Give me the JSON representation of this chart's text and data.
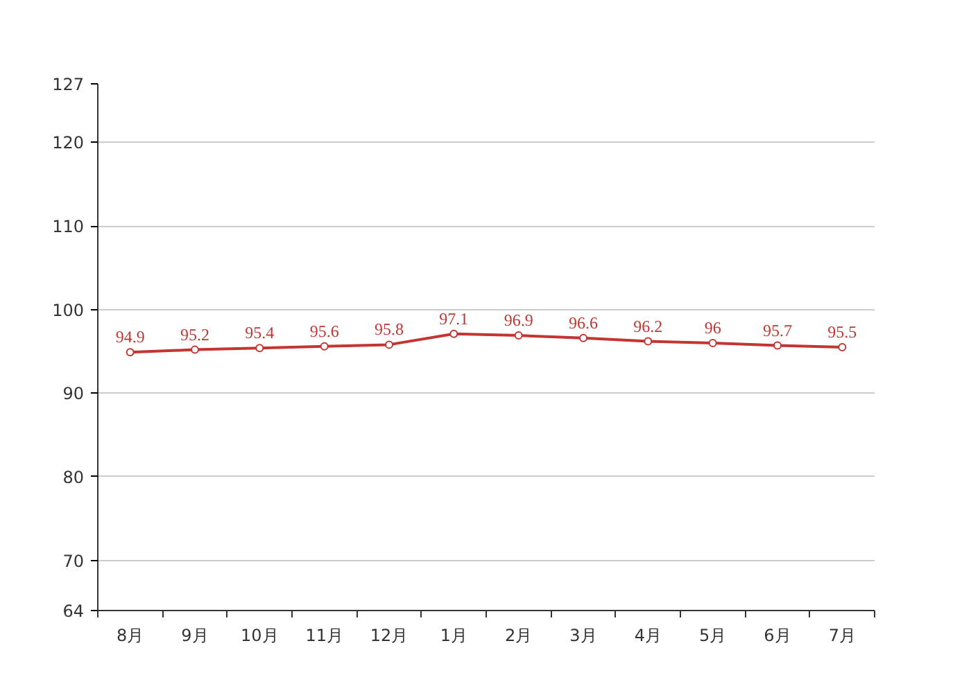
{
  "chart_data": {
    "type": "line",
    "categories": [
      "8月",
      "9月",
      "10月",
      "11月",
      "12月",
      "1月",
      "2月",
      "3月",
      "4月",
      "5月",
      "6月",
      "7月"
    ],
    "series": [
      {
        "color": "#c23531",
        "values": [
          94.9,
          95.2,
          95.4,
          95.6,
          95.8,
          97.1,
          96.9,
          96.6,
          96.2,
          96,
          95.7,
          95.5
        ]
      }
    ],
    "ylim": [
      64,
      127
    ],
    "yticks": [
      64,
      70,
      80,
      90,
      100,
      110,
      120,
      127
    ],
    "grid": "y",
    "marker": "circle",
    "line_style": "solid",
    "data_labels": true
  }
}
